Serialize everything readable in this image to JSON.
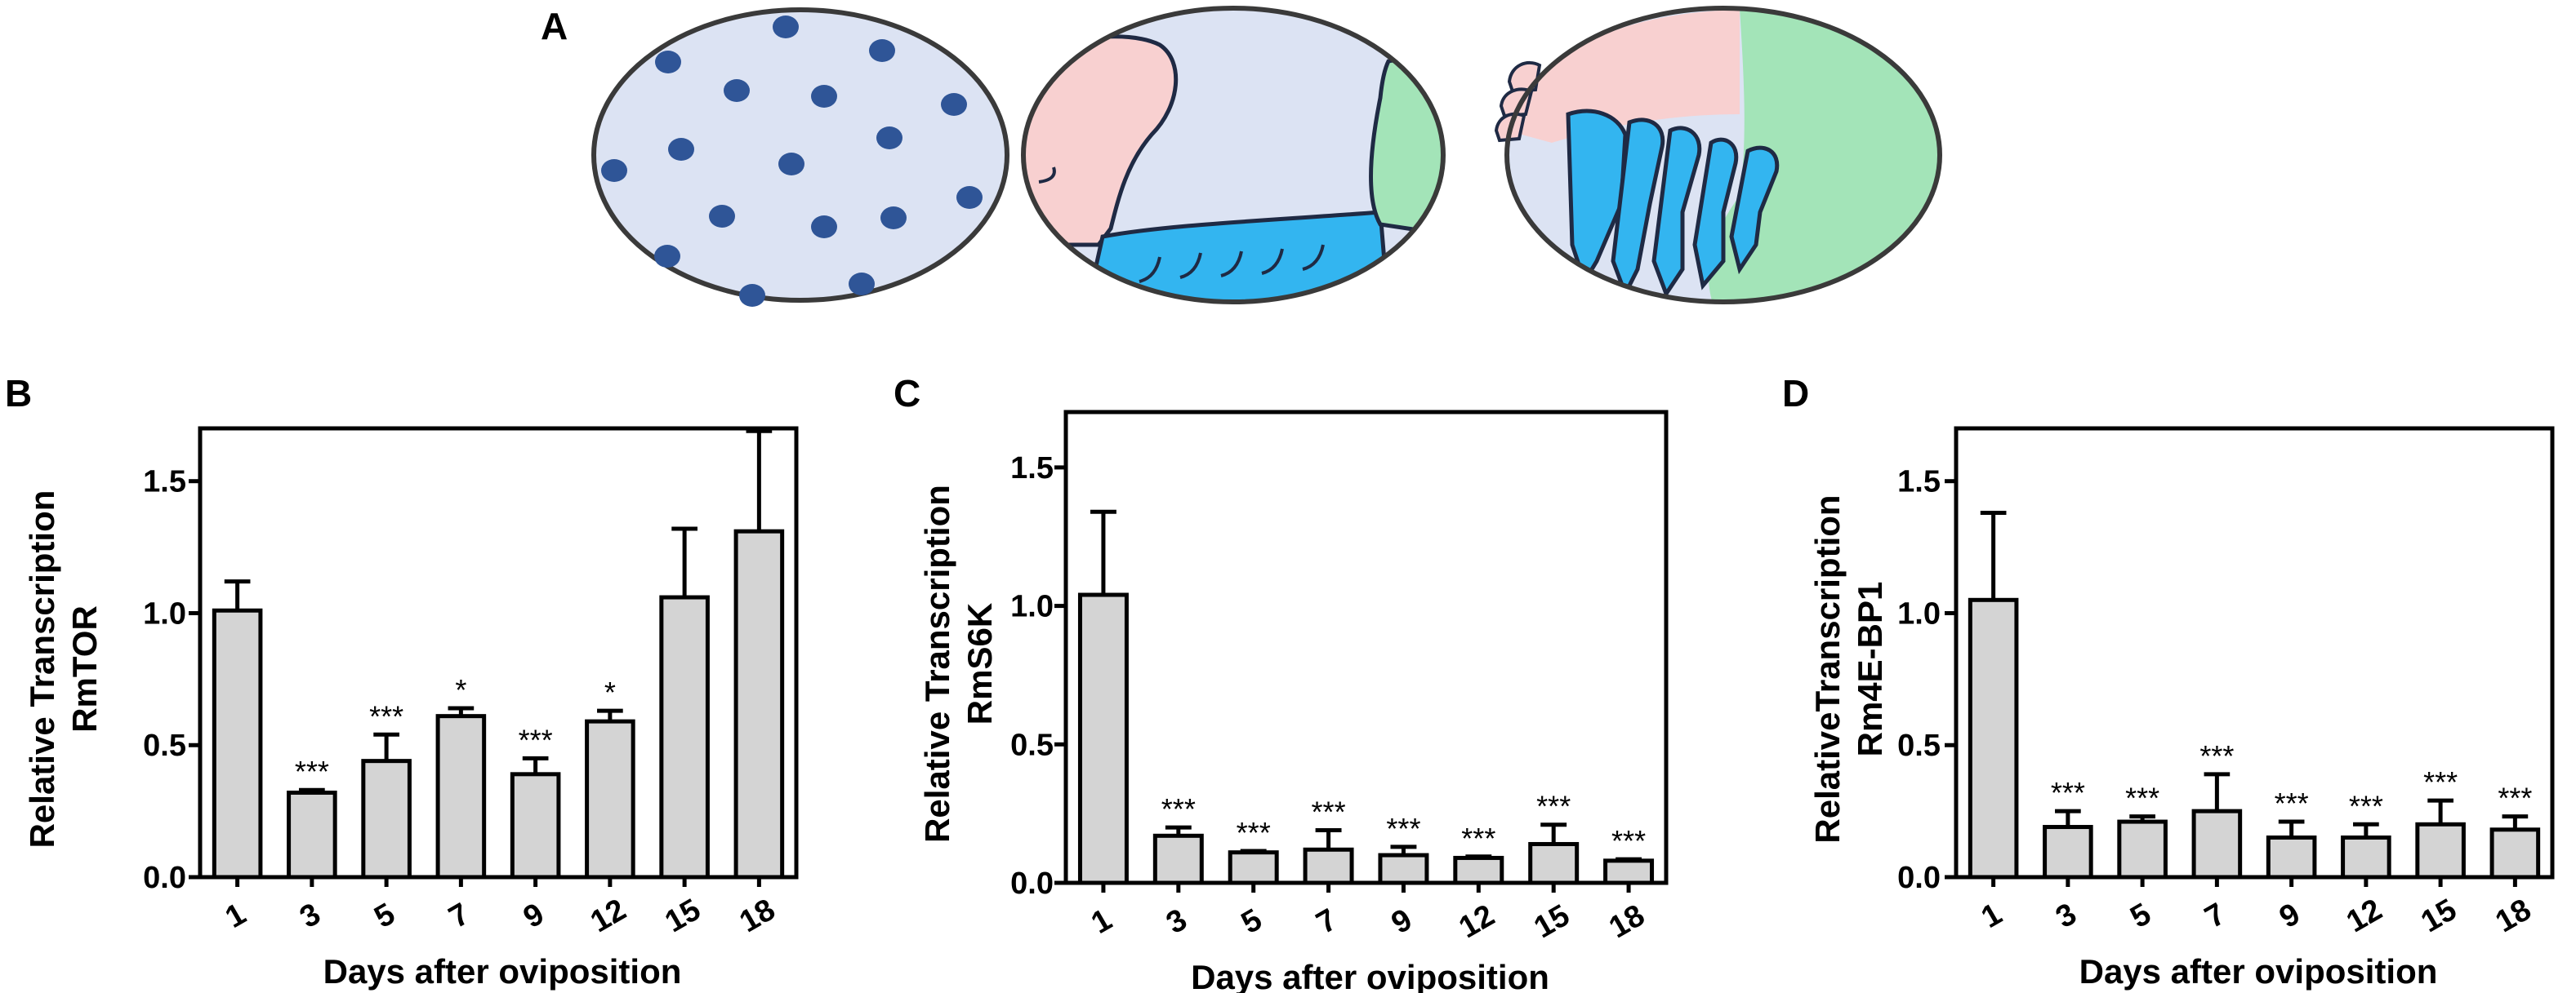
{
  "panels": {
    "A": {
      "letter": "A"
    },
    "B": {
      "letter": "B"
    },
    "C": {
      "letter": "C"
    },
    "D": {
      "letter": "D"
    }
  },
  "colors": {
    "bar_fill": "#d4d4d4",
    "axis": "#000000",
    "egg_background": "#dce3f3",
    "nuclei": "#2f5597",
    "head_region": "#f8d0d0",
    "posterior_region": "#a3e4b8",
    "segment_region": "#33b5f0"
  },
  "illustration": {
    "stages": [
      "egg-with-nuclei",
      "germ-band-embryo",
      "segmented-embryo"
    ]
  },
  "chart_data": [
    {
      "panel": "B",
      "type": "bar",
      "title": "",
      "xlabel": "Days after oviposition",
      "ylabel": [
        "Relative Transcription",
        "RmTOR"
      ],
      "categories": [
        "1",
        "3",
        "5",
        "7",
        "9",
        "12",
        "15",
        "18"
      ],
      "values": [
        1.01,
        0.32,
        0.44,
        0.61,
        0.39,
        0.59,
        1.06,
        1.31
      ],
      "errors": [
        0.11,
        0.01,
        0.1,
        0.03,
        0.06,
        0.04,
        0.26,
        0.38
      ],
      "significance": [
        "",
        "***",
        "***",
        "*",
        "***",
        "*",
        "",
        ""
      ],
      "ylim": [
        0,
        1.7
      ],
      "yticks": [
        "0.0",
        "0.5",
        "1.0",
        "1.5"
      ]
    },
    {
      "panel": "C",
      "type": "bar",
      "title": "",
      "xlabel": "Days after oviposition",
      "ylabel": [
        "Relative Transcription",
        "RmS6K"
      ],
      "categories": [
        "1",
        "3",
        "5",
        "7",
        "9",
        "12",
        "15",
        "18"
      ],
      "values": [
        1.04,
        0.17,
        0.11,
        0.12,
        0.1,
        0.09,
        0.14,
        0.08
      ],
      "errors": [
        0.3,
        0.03,
        0.005,
        0.07,
        0.03,
        0.005,
        0.07,
        0.005
      ],
      "significance": [
        "",
        "***",
        "***",
        "***",
        "***",
        "***",
        "***",
        "***"
      ],
      "ylim": [
        0,
        1.7
      ],
      "yticks": [
        "0.0",
        "0.5",
        "1.0",
        "1.5"
      ]
    },
    {
      "panel": "D",
      "type": "bar",
      "title": "",
      "xlabel": "Days after oviposition",
      "ylabel": [
        "RelativeTranscription",
        "Rm4E-BP1"
      ],
      "categories": [
        "1",
        "3",
        "5",
        "7",
        "9",
        "12",
        "15",
        "18"
      ],
      "values": [
        1.05,
        0.19,
        0.21,
        0.25,
        0.15,
        0.15,
        0.2,
        0.18
      ],
      "errors": [
        0.33,
        0.06,
        0.02,
        0.14,
        0.06,
        0.05,
        0.09,
        0.05
      ],
      "significance": [
        "",
        "***",
        "***",
        "***",
        "***",
        "***",
        "***",
        "***"
      ],
      "ylim": [
        0,
        1.7
      ],
      "yticks": [
        "0.0",
        "0.5",
        "1.0",
        "1.5"
      ]
    }
  ]
}
